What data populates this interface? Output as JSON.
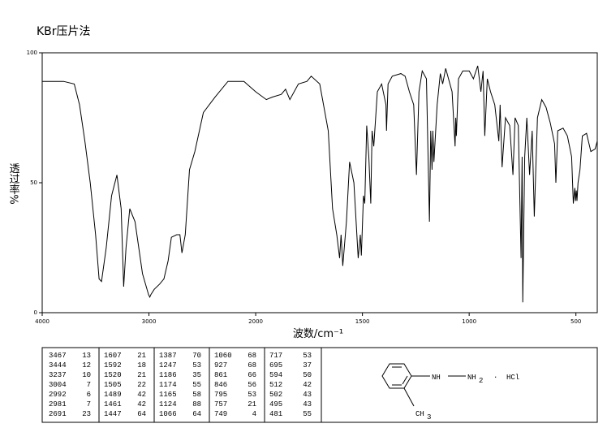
{
  "chart_data": {
    "type": "line",
    "title": "KBr压片法",
    "x_label": "波数/cm⁻¹",
    "y_label": "透过率%",
    "xlim": [
      4000,
      400
    ],
    "xticks": [
      4000,
      3000,
      2000,
      1500,
      1000,
      500
    ],
    "ylim": [
      0,
      100
    ],
    "yticks": [
      0,
      50,
      100
    ],
    "color": "#000000",
    "x": [
      4000,
      3800,
      3700,
      3650,
      3600,
      3550,
      3500,
      3467,
      3444,
      3400,
      3350,
      3300,
      3260,
      3237,
      3215,
      3180,
      3130,
      3060,
      3004,
      2992,
      2981,
      2950,
      2900,
      2860,
      2820,
      2790,
      2740,
      2710,
      2691,
      2660,
      2620,
      2570,
      2490,
      2380,
      2260,
      2110,
      2000,
      1950,
      1920,
      1880,
      1860,
      1840,
      1800,
      1760,
      1740,
      1700,
      1660,
      1640,
      1620,
      1607,
      1600,
      1592,
      1575,
      1560,
      1540,
      1520,
      1510,
      1505,
      1495,
      1489,
      1480,
      1470,
      1461,
      1455,
      1447,
      1430,
      1410,
      1390,
      1387,
      1380,
      1360,
      1320,
      1300,
      1280,
      1260,
      1247,
      1235,
      1220,
      1200,
      1186,
      1180,
      1174,
      1170,
      1165,
      1150,
      1135,
      1124,
      1110,
      1080,
      1066,
      1063,
      1060,
      1050,
      1030,
      1000,
      980,
      960,
      945,
      935,
      927,
      915,
      900,
      880,
      861,
      855,
      846,
      830,
      810,
      795,
      785,
      770,
      757,
      752,
      749,
      740,
      730,
      717,
      705,
      695,
      680,
      660,
      640,
      620,
      600,
      594,
      585,
      560,
      540,
      520,
      512,
      505,
      502,
      498,
      495,
      490,
      481,
      470,
      450,
      430,
      410,
      400
    ],
    "values": [
      89,
      89,
      88,
      80,
      66,
      50,
      30,
      13,
      12,
      25,
      45,
      53,
      40,
      10,
      25,
      40,
      35,
      15,
      7,
      6,
      7,
      9,
      11,
      13,
      20,
      29,
      30,
      30,
      23,
      30,
      55,
      62,
      77,
      83,
      89,
      89,
      85,
      82,
      83,
      84,
      86,
      82,
      88,
      89,
      91,
      88,
      70,
      40,
      30,
      21,
      30,
      18,
      35,
      58,
      50,
      21,
      30,
      22,
      45,
      42,
      72,
      60,
      42,
      70,
      64,
      85,
      88,
      80,
      70,
      88,
      91,
      92,
      91,
      85,
      80,
      53,
      85,
      93,
      90,
      35,
      70,
      55,
      70,
      58,
      80,
      92,
      88,
      94,
      85,
      64,
      75,
      68,
      90,
      93,
      93,
      90,
      95,
      85,
      93,
      68,
      90,
      85,
      80,
      66,
      80,
      56,
      75,
      72,
      53,
      75,
      72,
      21,
      60,
      4,
      60,
      75,
      53,
      70,
      37,
      75,
      82,
      79,
      73,
      65,
      50,
      70,
      71,
      68,
      60,
      42,
      48,
      43,
      47,
      43,
      50,
      55,
      68,
      69,
      62,
      63,
      66
    ]
  },
  "peak_table": [
    [
      [
        3467,
        13
      ],
      [
        3444,
        12
      ],
      [
        3237,
        10
      ],
      [
        3004,
        7
      ],
      [
        2992,
        6
      ],
      [
        2981,
        7
      ],
      [
        2691,
        23
      ]
    ],
    [
      [
        1607,
        21
      ],
      [
        1592,
        18
      ],
      [
        1520,
        21
      ],
      [
        1505,
        22
      ],
      [
        1489,
        42
      ],
      [
        1461,
        42
      ],
      [
        1447,
        64
      ]
    ],
    [
      [
        1387,
        70
      ],
      [
        1247,
        53
      ],
      [
        1186,
        35
      ],
      [
        1174,
        55
      ],
      [
        1165,
        58
      ],
      [
        1124,
        88
      ],
      [
        1066,
        64
      ]
    ],
    [
      [
        1060,
        68
      ],
      [
        927,
        68
      ],
      [
        861,
        66
      ],
      [
        846,
        56
      ],
      [
        795,
        53
      ],
      [
        757,
        21
      ],
      [
        749,
        4
      ]
    ],
    [
      [
        717,
        53
      ],
      [
        695,
        37
      ],
      [
        594,
        50
      ],
      [
        512,
        42
      ],
      [
        502,
        43
      ],
      [
        495,
        43
      ],
      [
        481,
        55
      ]
    ]
  ],
  "structure": {
    "nh": "NH",
    "nh2": "NH",
    "sub2": "2",
    "dot": "·",
    "hcl": "HCl",
    "ch": "CH",
    "sub3": "3"
  }
}
